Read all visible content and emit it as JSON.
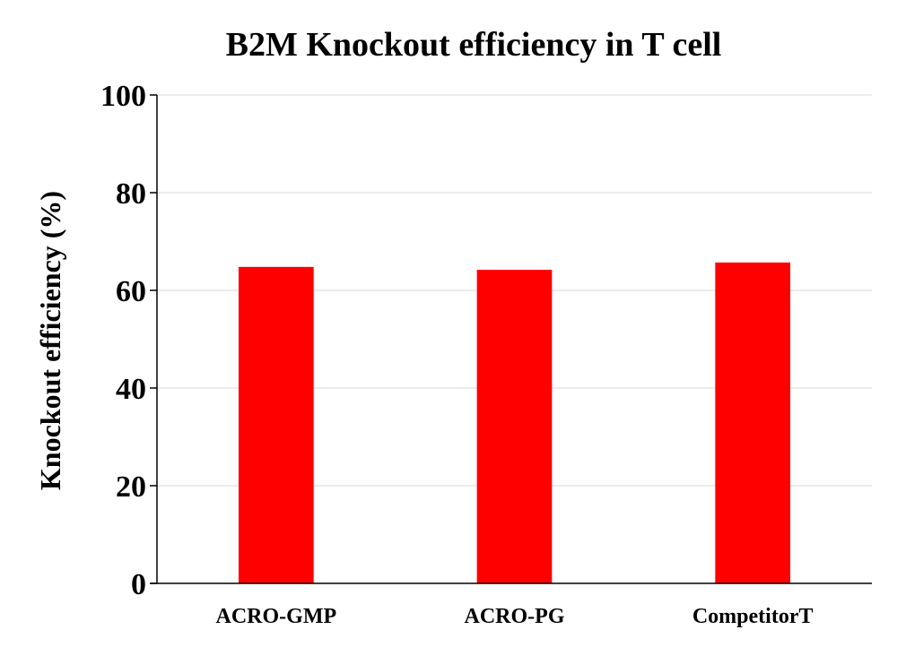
{
  "chart_data": {
    "type": "bar",
    "title": "B2M Knockout efficiency in T cell",
    "xlabel": "",
    "ylabel": "Knockout efficiency (%)",
    "categories": [
      "ACRO-GMP",
      "ACRO-PG",
      "CompetitorT"
    ],
    "values": [
      64.8,
      64.2,
      65.7
    ],
    "ylim": [
      0,
      100
    ],
    "yticks": [
      "0",
      "20",
      "40",
      "60",
      "80",
      "100"
    ],
    "grid": true,
    "legend": "none",
    "bar_color": "#ff0000"
  }
}
